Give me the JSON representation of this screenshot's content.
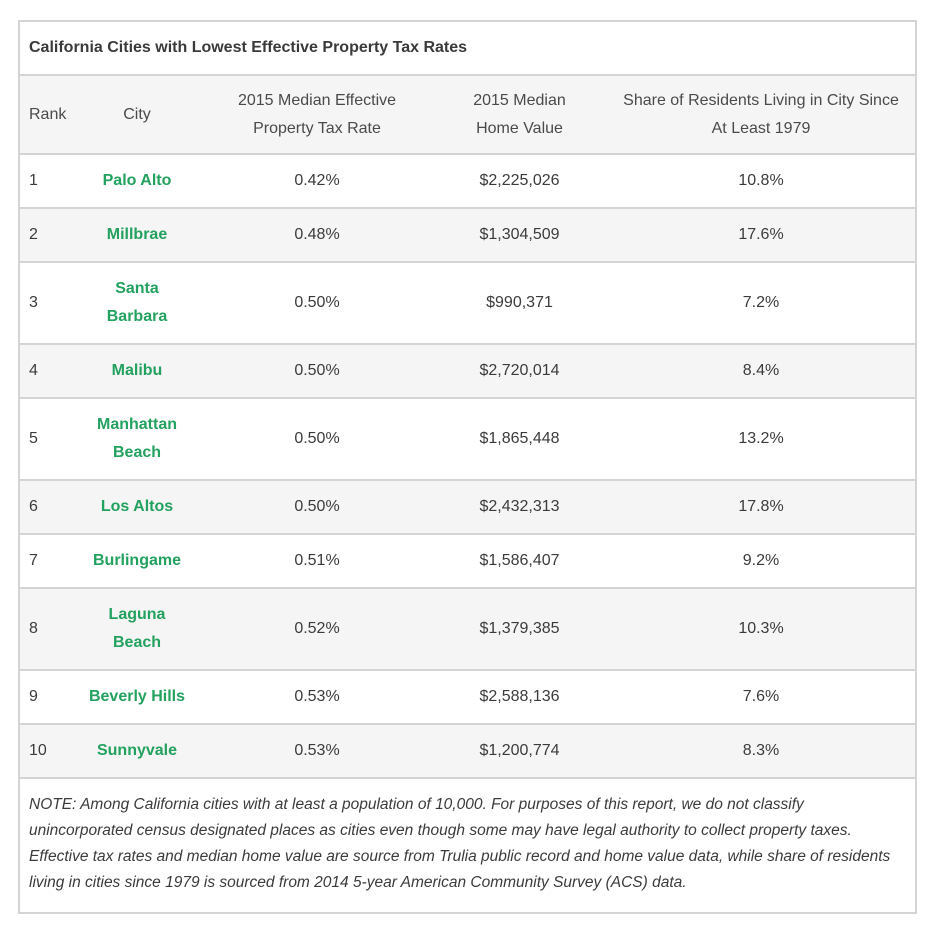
{
  "table": {
    "title": "California Cities with Lowest Effective Property Tax Rates",
    "headers": {
      "rank": "Rank",
      "city": "City",
      "tax_rate_line1": "2015 Median Effective",
      "tax_rate_line2": "Property Tax Rate",
      "home_value_line1": "2015 Median",
      "home_value_line2": "Home Value",
      "residents_line1": "Share of Residents Living in City Since",
      "residents_line2": "At Least 1979"
    },
    "rows": [
      {
        "rank": "1",
        "city_line1": "Palo Alto",
        "city_line2": "",
        "tax_rate": "0.42%",
        "home_value": "$2,225,026",
        "residents": "10.8%"
      },
      {
        "rank": "2",
        "city_line1": "Millbrae",
        "city_line2": "",
        "tax_rate": "0.48%",
        "home_value": "$1,304,509",
        "residents": "17.6%"
      },
      {
        "rank": "3",
        "city_line1": "Santa",
        "city_line2": "Barbara",
        "tax_rate": "0.50%",
        "home_value": "$990,371",
        "residents": "7.2%"
      },
      {
        "rank": "4",
        "city_line1": "Malibu",
        "city_line2": "",
        "tax_rate": "0.50%",
        "home_value": "$2,720,014",
        "residents": "8.4%"
      },
      {
        "rank": "5",
        "city_line1": "Manhattan",
        "city_line2": "Beach",
        "tax_rate": "0.50%",
        "home_value": "$1,865,448",
        "residents": "13.2%"
      },
      {
        "rank": "6",
        "city_line1": "Los Altos",
        "city_line2": "",
        "tax_rate": "0.50%",
        "home_value": "$2,432,313",
        "residents": "17.8%"
      },
      {
        "rank": "7",
        "city_line1": "Burlingame",
        "city_line2": "",
        "tax_rate": "0.51%",
        "home_value": "$1,586,407",
        "residents": "9.2%"
      },
      {
        "rank": "8",
        "city_line1": "Laguna",
        "city_line2": "Beach",
        "tax_rate": "0.52%",
        "home_value": "$1,379,385",
        "residents": "10.3%"
      },
      {
        "rank": "9",
        "city_line1": "Beverly Hills",
        "city_line2": "",
        "tax_rate": "0.53%",
        "home_value": "$2,588,136",
        "residents": "7.6%"
      },
      {
        "rank": "10",
        "city_line1": "Sunnyvale",
        "city_line2": "",
        "tax_rate": "0.53%",
        "home_value": "$1,200,774",
        "residents": "8.3%"
      }
    ],
    "note": "NOTE: Among California cities with at least a population of 10,000. For purposes of this report, we do not classify unincorporated census designated places as cities even though some may have legal authority to collect property taxes. Effective tax rates and median home value are source from Trulia public record and home value data, while share of residents living in cities since 1979 is sourced from 2014 5-year American Community Survey (ACS) data."
  },
  "colors": {
    "city_link": "#23a15f",
    "border": "#d4d4d4",
    "stripe": "#f5f5f5"
  }
}
